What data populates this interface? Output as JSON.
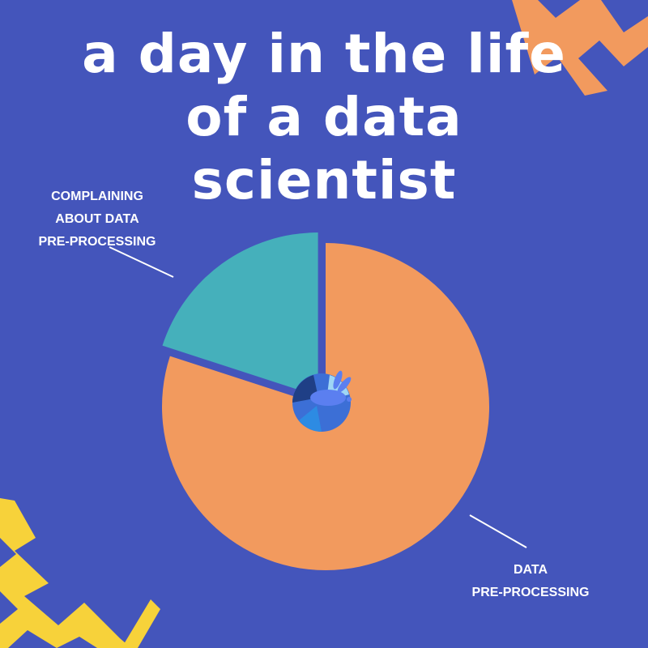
{
  "title_lines": [
    "a day in the life",
    "of a data",
    "scientist"
  ],
  "chart_data": {
    "type": "pie",
    "title": "a day in the life of a data scientist",
    "slices": [
      {
        "label": "COMPLAINING ABOUT DATA PRE-PROCESSING",
        "value": 20,
        "color": "#45b0bb",
        "exploded": true
      },
      {
        "label": "DATA PRE-PROCESSING",
        "value": 80,
        "color": "#f29a5e",
        "exploded": false
      }
    ],
    "start_angle_deg": 0,
    "direction": "clockwise",
    "label_lines": [
      [
        "COMPLAINING",
        "ABOUT DATA",
        "PRE-PROCESSING"
      ],
      [
        "DATA",
        "PRE-PROCESSING"
      ]
    ]
  },
  "colors": {
    "background": "#4455bb",
    "accent_orange": "#f29a5e",
    "accent_yellow": "#f7d23a",
    "text": "#ffffff"
  },
  "icons": {
    "center": "bunny-planet-icon",
    "top_right": "zigzag-orange",
    "bottom_left": "zigzag-yellow"
  }
}
